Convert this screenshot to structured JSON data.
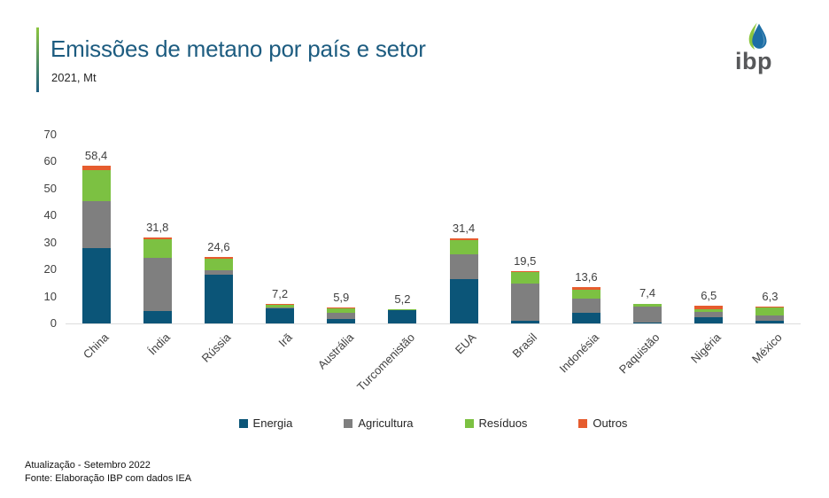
{
  "header": {
    "title": "Emissões de metano por país e setor",
    "subtitle": "2021, Mt",
    "logo_text": "ibp"
  },
  "footer": {
    "line1": "Atualização - Setembro 2022",
    "line2": "Fonte: Elaboração IBP com dados IEA"
  },
  "colors": {
    "title": "#1d5c80",
    "accent_green": "#8cc63f",
    "accent_blue": "#1d5c80",
    "axis_text": "#404040",
    "baseline": "#dcdcdc",
    "logo_text": "#57585a"
  },
  "chart_data": {
    "type": "bar",
    "stacked": true,
    "title": "Emissões de metano por país e setor",
    "subtitle": "2021, Mt",
    "unit": "Mt",
    "ylim": [
      0,
      70
    ],
    "yticks": [
      0,
      10,
      20,
      30,
      40,
      50,
      60,
      70
    ],
    "grid": false,
    "legend_position": "bottom",
    "categories": [
      "China",
      "Índia",
      "Rússia",
      "Irã",
      "Austrália",
      "Turcomenistão",
      "EUA",
      "Brasil",
      "Indonésia",
      "Paquistão",
      "Nigéria",
      "México"
    ],
    "totals": [
      58.4,
      31.8,
      24.6,
      7.2,
      5.9,
      5.2,
      31.4,
      19.5,
      13.6,
      7.4,
      6.5,
      6.3
    ],
    "totals_display": [
      "58,4",
      "31,8",
      "24,6",
      "7,2",
      "5,9",
      "5,2",
      "31,4",
      "19,5",
      "13,6",
      "7,4",
      "6,5",
      "6,3"
    ],
    "series": [
      {
        "name": "Energia",
        "color": "#0b5578",
        "values": [
          28.0,
          4.5,
          18.0,
          5.6,
          1.7,
          5.0,
          16.5,
          1.1,
          3.8,
          0.4,
          2.4,
          1.1
        ]
      },
      {
        "name": "Agricultura",
        "color": "#7f7f7f",
        "values": [
          17.5,
          19.9,
          1.8,
          0.4,
          2.3,
          0.1,
          9.3,
          13.7,
          5.5,
          5.7,
          1.8,
          1.8
        ]
      },
      {
        "name": "Resíduos",
        "color": "#7cc142",
        "values": [
          11.5,
          6.7,
          4.3,
          1.0,
          1.7,
          0.1,
          5.2,
          4.4,
          3.3,
          1.0,
          1.1,
          3.1
        ]
      },
      {
        "name": "Outros",
        "color": "#e65c2e",
        "values": [
          1.4,
          0.7,
          0.5,
          0.2,
          0.2,
          0.0,
          0.4,
          0.3,
          1.0,
          0.3,
          1.2,
          0.3
        ]
      }
    ]
  }
}
